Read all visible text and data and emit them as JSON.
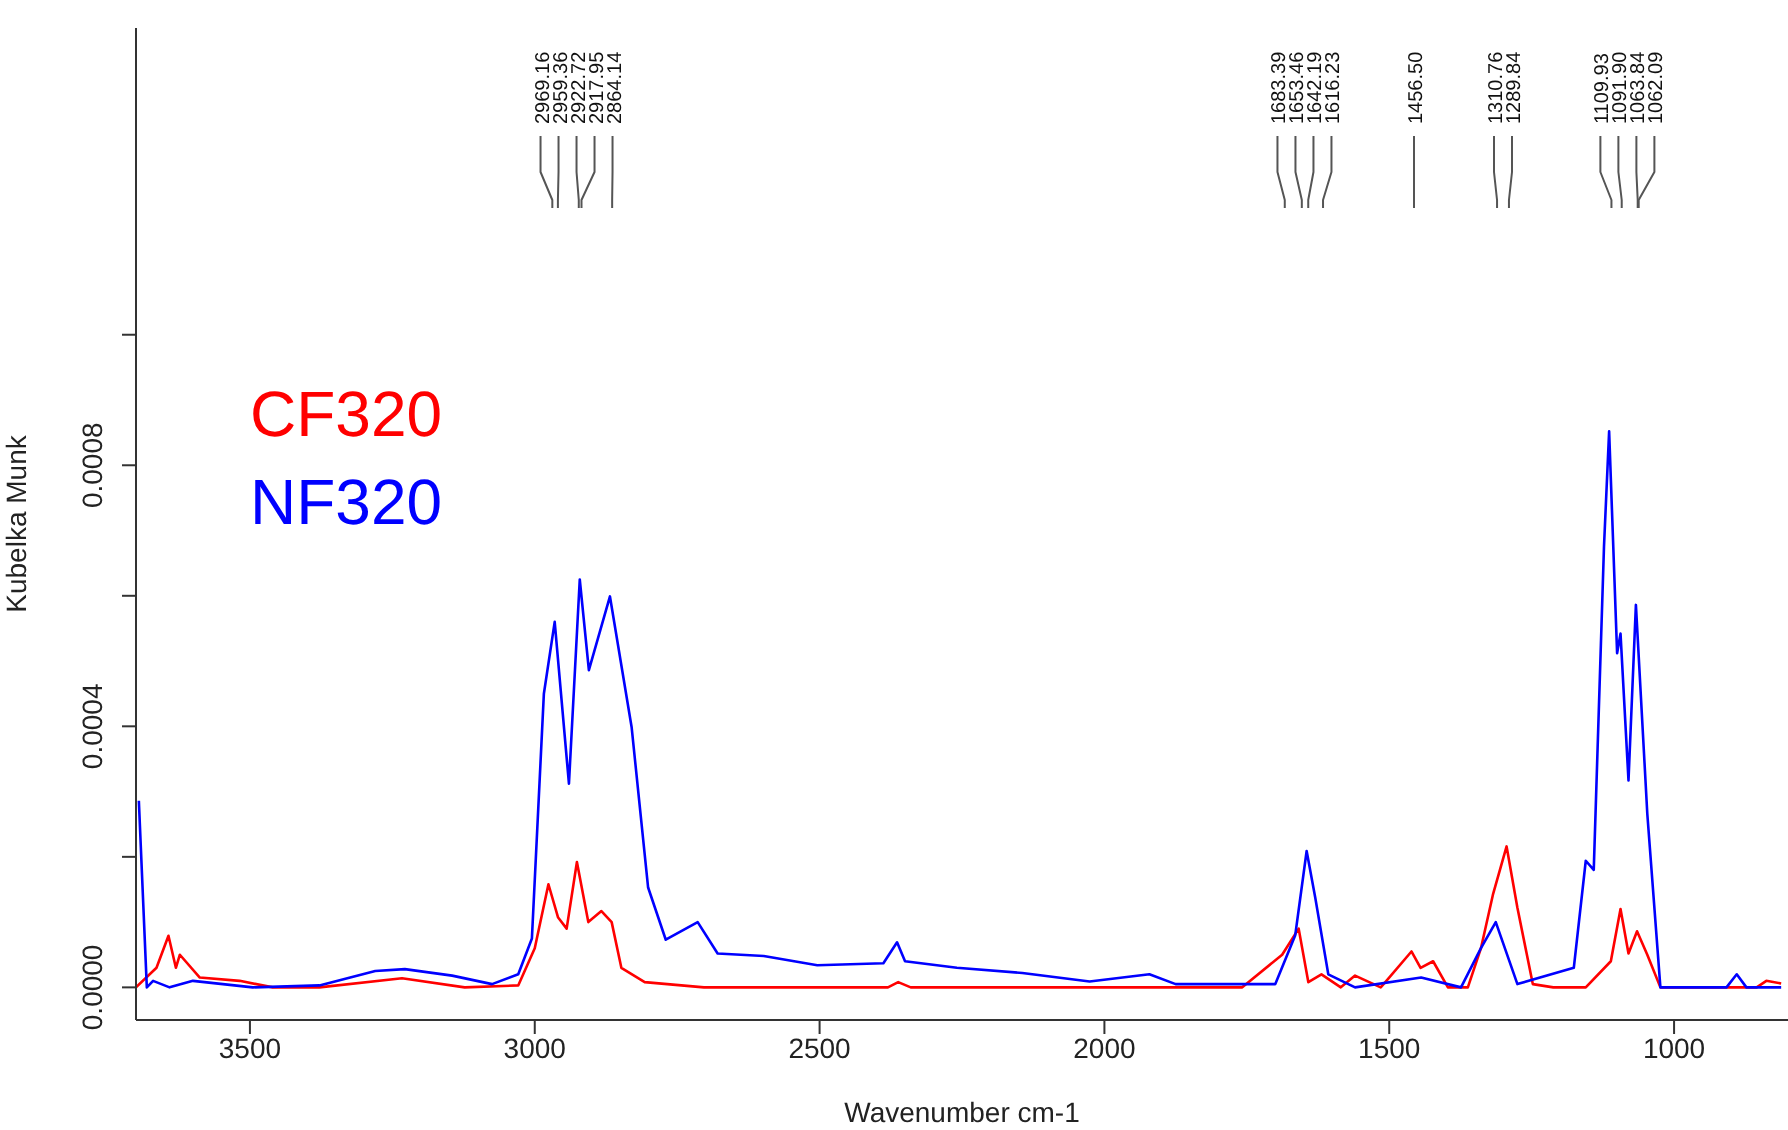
{
  "chart_data": {
    "type": "line",
    "xlabel": "Wavenumber cm-1",
    "ylabel": "Kubelka Munk",
    "xlim": [
      3700,
      800
    ],
    "xticks": [
      3500,
      3000,
      2500,
      2000,
      1500,
      1000
    ],
    "ylim": [
      -5e-05,
      0.00147
    ],
    "yticks": [
      {
        "value": 0,
        "label": "0.0000"
      },
      {
        "value": 0.0002,
        "label": null
      },
      {
        "value": 0.0004,
        "label": "0.0004"
      },
      {
        "value": 0.0006,
        "label": null
      },
      {
        "value": 0.0008,
        "label": "0.0008"
      },
      {
        "value": 0.001,
        "label": null
      }
    ],
    "legend": "top left",
    "grid": false,
    "series": [
      {
        "name": "CF320",
        "color": "#ff0000",
        "x": [
          3700,
          3664,
          3643,
          3630,
          3623,
          3588,
          3518,
          3460,
          3378,
          3233,
          3123,
          3029,
          3000,
          2976,
          2959,
          2944,
          2926,
          2906,
          2883,
          2865,
          2848,
          2807,
          2703,
          2380,
          2362,
          2340,
          1758,
          1688,
          1659,
          1642,
          1619,
          1585,
          1560,
          1515,
          1505,
          1461,
          1445,
          1423,
          1397,
          1362,
          1339,
          1318,
          1294,
          1275,
          1248,
          1212,
          1155,
          1111,
          1094,
          1080,
          1065,
          1047,
          1024,
          855,
          838,
          812
        ],
        "values": [
          0,
          3e-05,
          7.9e-05,
          3e-05,
          5e-05,
          1.5e-05,
          1e-05,
          0,
          0,
          1.4e-05,
          0,
          3e-06,
          6e-05,
          0.000158,
          0.000107,
          9e-05,
          0.000192,
          0.0001,
          0.000117,
          0.0001,
          3e-05,
          8e-06,
          0,
          0,
          8e-06,
          0,
          0,
          5e-05,
          9e-05,
          8e-06,
          2e-05,
          0,
          1.8e-05,
          0,
          1e-05,
          5.5e-05,
          3e-05,
          4e-05,
          0,
          0,
          6e-05,
          0.000142,
          0.000216,
          0.000122,
          5e-06,
          0,
          0,
          4e-05,
          0.00012,
          5.2e-05,
          8.6e-05,
          5e-05,
          0,
          0,
          1e-05,
          6e-06
        ]
      },
      {
        "name": "NF320",
        "color": "#0000ff",
        "x": [
          3695,
          3681,
          3670,
          3641,
          3600,
          3495,
          3378,
          3280,
          3228,
          3145,
          3075,
          3029,
          3005,
          2984,
          2965,
          2940,
          2921,
          2905,
          2868,
          2830,
          2801,
          2770,
          2714,
          2679,
          2598,
          2504,
          2388,
          2364,
          2350,
          2259,
          2144,
          2026,
          1921,
          1875,
          1700,
          1665,
          1645,
          1630,
          1607,
          1560,
          1444,
          1374,
          1339,
          1313,
          1275,
          1176,
          1155,
          1141,
          1123,
          1114,
          1100,
          1094,
          1080,
          1067,
          1047,
          1024,
          908,
          890,
          873,
          812
        ],
        "values": [
          0.000286,
          0,
          1e-05,
          0,
          1e-05,
          0,
          3e-06,
          2.5e-05,
          2.8e-05,
          1.8e-05,
          5e-06,
          2e-05,
          7.5e-05,
          0.00045,
          0.00056,
          0.000312,
          0.000625,
          0.000486,
          0.000599,
          0.000399,
          0.000153,
          7.3e-05,
          0.0001,
          5.2e-05,
          4.8e-05,
          3.4e-05,
          3.7e-05,
          6.9e-05,
          4e-05,
          3e-05,
          2.2e-05,
          9e-06,
          2e-05,
          5e-06,
          5e-06,
          8e-05,
          0.000209,
          0.000138,
          2e-05,
          0,
          1.5e-05,
          0,
          6e-05,
          0.0001,
          5e-06,
          3e-05,
          0.000194,
          0.00018,
          0.000676,
          0.000852,
          0.000512,
          0.000542,
          0.000317,
          0.000586,
          0.000266,
          0,
          0,
          2e-05,
          0,
          0
        ]
      }
    ],
    "annotations": [
      {
        "text": "2969.16",
        "x": 2969.16
      },
      {
        "text": "2959.36",
        "x": 2959.36
      },
      {
        "text": "2922.72",
        "x": 2922.72
      },
      {
        "text": "2917.95",
        "x": 2917.95
      },
      {
        "text": "2864.14",
        "x": 2864.14
      },
      {
        "text": "1683.39",
        "x": 1683.39
      },
      {
        "text": "1653.46",
        "x": 1653.46
      },
      {
        "text": "1642.19",
        "x": 1642.19
      },
      {
        "text": "1616.23",
        "x": 1616.23
      },
      {
        "text": "1456.50",
        "x": 1456.5
      },
      {
        "text": "1310.76",
        "x": 1310.76
      },
      {
        "text": "1289.84",
        "x": 1289.84
      },
      {
        "text": "1109.93",
        "x": 1109.93
      },
      {
        "text": "1091.90",
        "x": 1091.9
      },
      {
        "text": "1063.84",
        "x": 1063.84
      },
      {
        "text": "1062.09",
        "x": 1062.09
      }
    ]
  }
}
